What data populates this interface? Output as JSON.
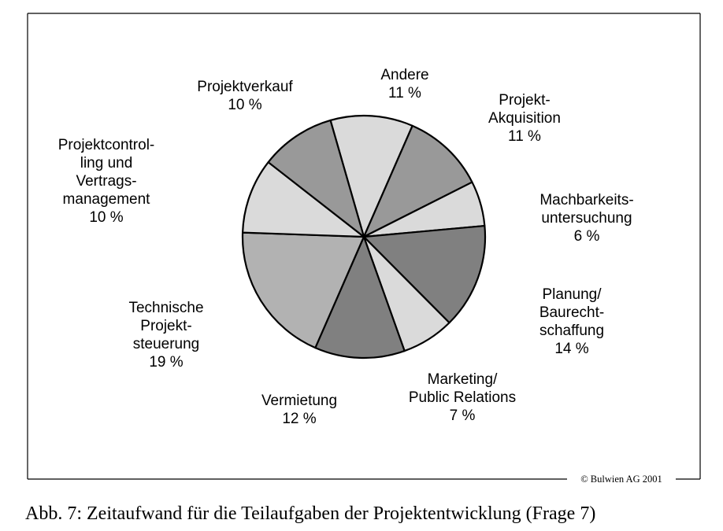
{
  "chart_data": {
    "type": "pie",
    "slices": [
      {
        "label": "Andere",
        "value": 11,
        "value_text": "11 %",
        "label_lines": [
          "Andere",
          "11 %"
        ],
        "color": "#dadada"
      },
      {
        "label": "Projekt-Akquisition",
        "value": 11,
        "value_text": "11 %",
        "label_lines": [
          "Projekt-",
          "Akquisition",
          "11 %"
        ],
        "color": "#999999"
      },
      {
        "label": "Machbarkeitsuntersuchung",
        "value": 6,
        "value_text": "6 %",
        "label_lines": [
          "Machbarkeits-",
          "untersuchung",
          "6 %"
        ],
        "color": "#dadada"
      },
      {
        "label": "Planung/Baurechtschaffung",
        "value": 14,
        "value_text": "14 %",
        "label_lines": [
          "Planung/",
          "Baurecht-",
          "schaffung",
          "14 %"
        ],
        "color": "#808080"
      },
      {
        "label": "Marketing/Public Relations",
        "value": 7,
        "value_text": "7 %",
        "label_lines": [
          "Marketing/",
          "Public Relations",
          "7 %"
        ],
        "color": "#dadada"
      },
      {
        "label": "Vermietung",
        "value": 12,
        "value_text": "12 %",
        "label_lines": [
          "Vermietung",
          "12 %"
        ],
        "color": "#808080"
      },
      {
        "label": "Technische Projektsteuerung",
        "value": 19,
        "value_text": "19 %",
        "label_lines": [
          "Technische",
          "Projekt-",
          "steuerung",
          "19 %"
        ],
        "color": "#b2b2b2"
      },
      {
        "label": "Projektcontrolling und Vertragsmanagement",
        "value": 10,
        "value_text": "10 %",
        "label_lines": [
          "Projektcontrol-",
          "ling und",
          "Vertrags-",
          "management",
          "10 %"
        ],
        "color": "#dadada"
      },
      {
        "label": "Projektverkauf",
        "value": 10,
        "value_text": "10 %",
        "label_lines": [
          "Projektverkauf",
          "10 %"
        ],
        "color": "#999999"
      }
    ],
    "copyright": "© Bulwien AG 2001"
  },
  "caption": "Abb. 7: Zeitaufwand für die Teilaufgaben der Projektentwicklung (Frage 7)"
}
